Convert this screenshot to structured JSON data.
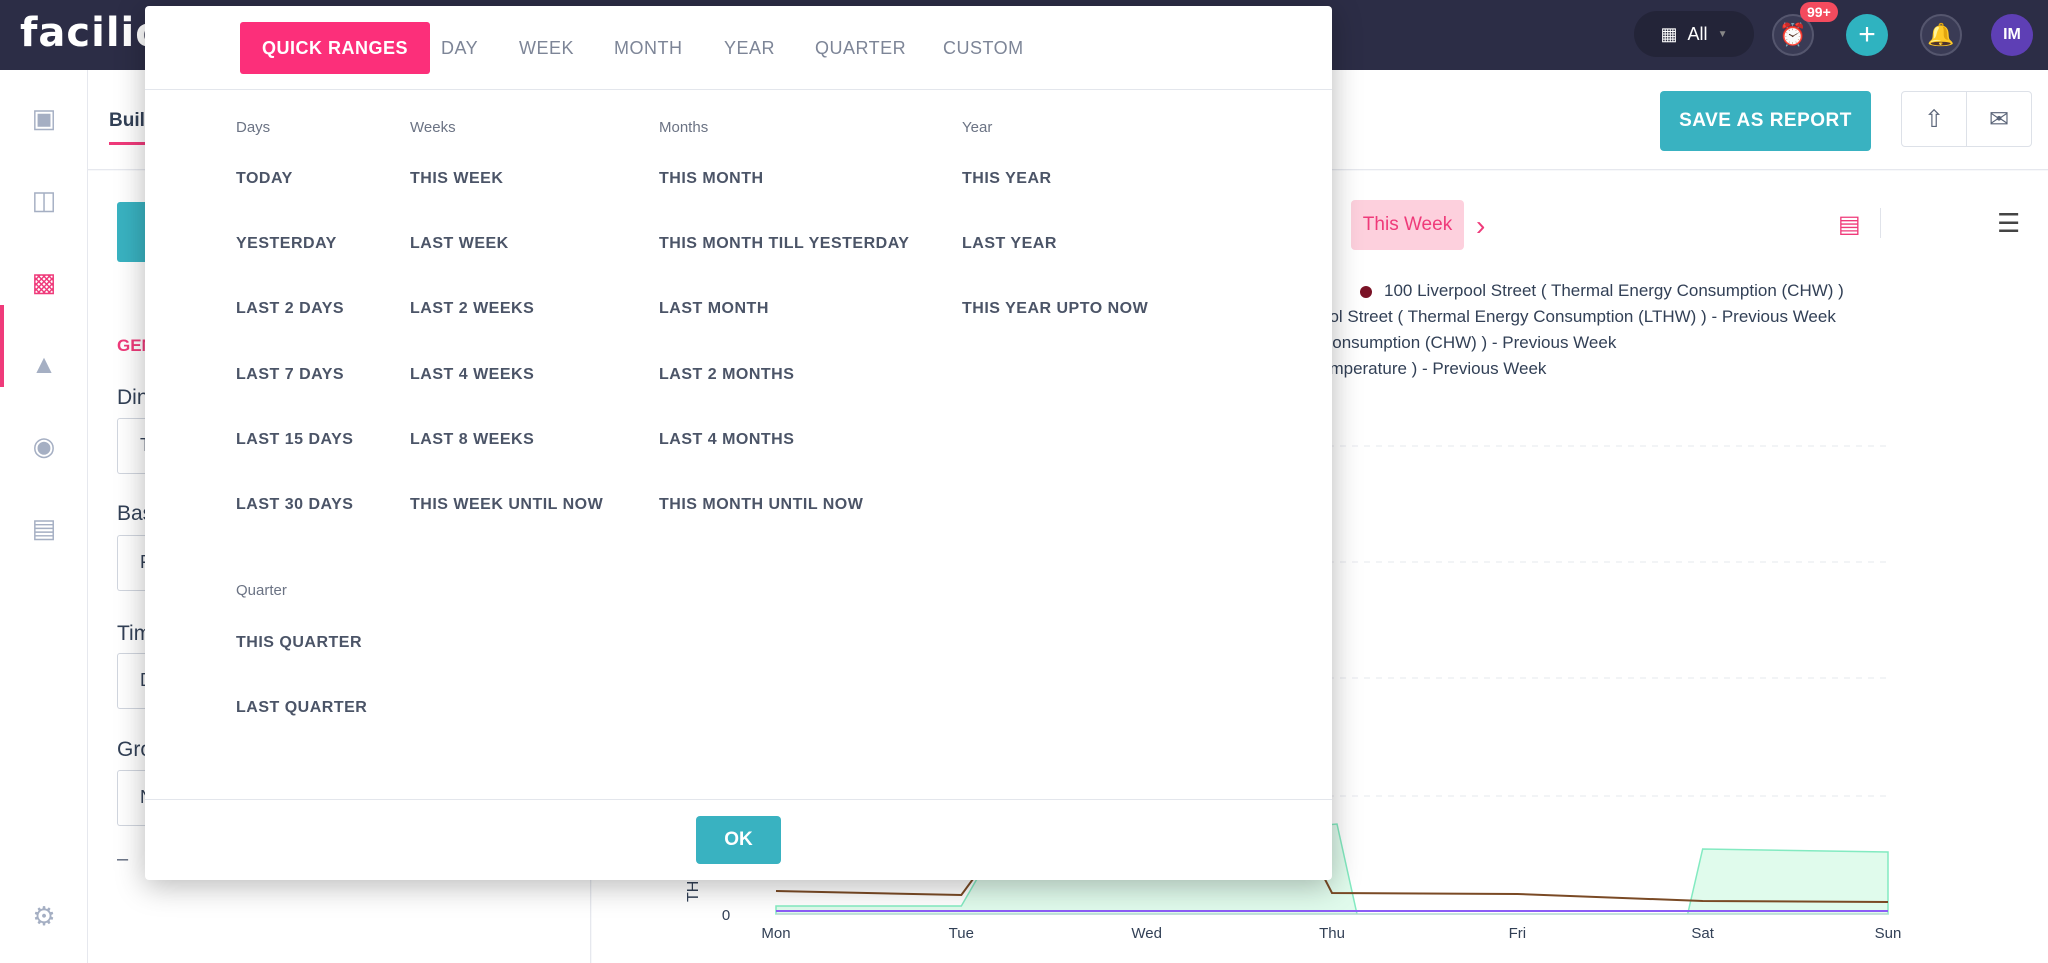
{
  "app": {
    "logo": "facilio"
  },
  "topbar": {
    "site_label": "All",
    "alarm_badge": "99+",
    "avatar_initials": "IM"
  },
  "header": {
    "tab_label": "Buil",
    "save_report_label": "SAVE AS REPORT"
  },
  "left_panel": {
    "section_label": "GEN",
    "field_labels": [
      "Din",
      "Bas",
      "Tim",
      "Gro"
    ],
    "field_values": [
      "T",
      "F",
      "D",
      "N"
    ],
    "dash": "–"
  },
  "chart_toolbar": {
    "period_label": "This Week"
  },
  "chart_data": {
    "type": "line",
    "x": [
      "Mon",
      "Tue",
      "Wed",
      "Thu",
      "Fri",
      "Sat",
      "Sun"
    ],
    "series": [
      {
        "name": "100 Liverpool Street ( Thermal Energy Consumption (CHW) )"
      },
      {
        "name": "ool Street ( Thermal Energy Consumption (LTHW) ) - Previous Week"
      },
      {
        "name": "Consumption (CHW) ) - Previous Week"
      },
      {
        "name": "emperature ) - Previous Week"
      }
    ],
    "ylabel": "TH",
    "y_tick_visible": "0"
  },
  "dialog": {
    "tabs": [
      "QUICK RANGES",
      "DAY",
      "WEEK",
      "MONTH",
      "YEAR",
      "QUARTER",
      "CUSTOM"
    ],
    "active_tab": 0,
    "columns": {
      "days": {
        "title": "Days",
        "items": [
          "TODAY",
          "YESTERDAY",
          "LAST 2 DAYS",
          "LAST 7 DAYS",
          "LAST 15 DAYS",
          "LAST 30 DAYS"
        ]
      },
      "weeks": {
        "title": "Weeks",
        "items": [
          "THIS WEEK",
          "LAST WEEK",
          "LAST 2 WEEKS",
          "LAST 4 WEEKS",
          "LAST 8 WEEKS",
          "THIS WEEK UNTIL NOW"
        ]
      },
      "months": {
        "title": "Months",
        "items": [
          "THIS MONTH",
          "THIS MONTH TILL YESTERDAY",
          "LAST MONTH",
          "LAST 2 MONTHS",
          "LAST 4 MONTHS",
          "THIS MONTH UNTIL NOW"
        ]
      },
      "year": {
        "title": "Year",
        "items": [
          "THIS YEAR",
          "LAST YEAR",
          "THIS YEAR UPTO NOW"
        ]
      },
      "quarter": {
        "title": "Quarter",
        "items": [
          "THIS QUARTER",
          "LAST QUARTER"
        ]
      }
    },
    "ok_label": "OK"
  },
  "colors": {
    "accent_pink": "#fc2f7a",
    "teal": "#39b2c1",
    "topbar": "#2c2d46"
  }
}
